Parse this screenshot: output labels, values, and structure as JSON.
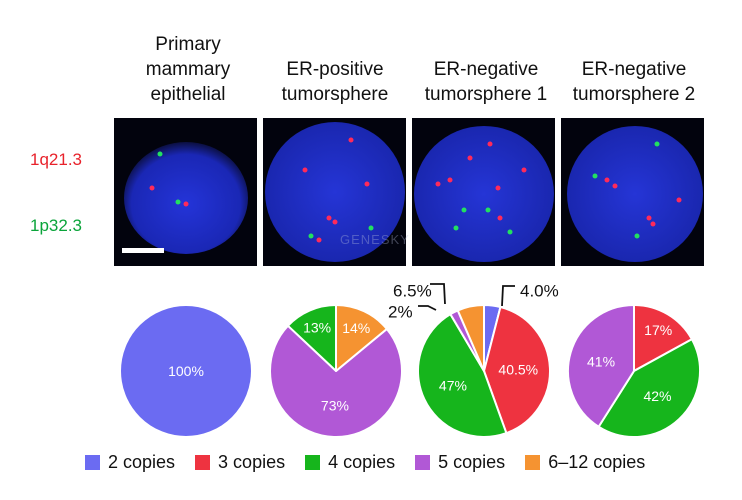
{
  "panel_titles": [
    "Primary\nmammary\nepithelial",
    "ER-positive\ntumorsphere",
    "ER-negative\ntumorsphere 1",
    "ER-negative\ntumorsphere 2"
  ],
  "probe_labels": {
    "red_probe": "1q21.3",
    "green_probe": "1p32.3"
  },
  "colors": {
    "2 copies": "#6b6bf2",
    "3 copies": "#ee3340",
    "4 copies": "#16b51c",
    "5 copies": "#b158d6",
    "6–12 copies": "#f59331",
    "nucleus": "#1c2ec8",
    "red_probe": "#ff2a5a",
    "green_probe": "#22e060"
  },
  "watermark": "GENESKY",
  "chart_data": [
    {
      "type": "pie",
      "title": "Primary mammary epithelial",
      "slices": [
        {
          "name": "2 copies",
          "value": 100,
          "label": "100%"
        }
      ]
    },
    {
      "type": "pie",
      "title": "ER-positive tumorsphere",
      "slices": [
        {
          "name": "4 copies",
          "value": 13,
          "label": "13%"
        },
        {
          "name": "5 copies",
          "value": 73,
          "label": "73%"
        },
        {
          "name": "6–12 copies",
          "value": 14,
          "label": "14%"
        }
      ]
    },
    {
      "type": "pie",
      "title": "ER-negative tumorsphere 1",
      "slices": [
        {
          "name": "2 copies",
          "value": 4.0,
          "label": "4.0%",
          "callout": true
        },
        {
          "name": "3 copies",
          "value": 40.5,
          "label": "40.5%"
        },
        {
          "name": "4 copies",
          "value": 47,
          "label": "47%"
        },
        {
          "name": "5 copies",
          "value": 2,
          "label": "2%",
          "callout": true
        },
        {
          "name": "6–12 copies",
          "value": 6.5,
          "label": "6.5%",
          "callout": true
        }
      ]
    },
    {
      "type": "pie",
      "title": "ER-negative tumorsphere 2",
      "slices": [
        {
          "name": "3 copies",
          "value": 17,
          "label": "17%"
        },
        {
          "name": "4 copies",
          "value": 42,
          "label": "42%"
        },
        {
          "name": "5 copies",
          "value": 41,
          "label": "41%"
        }
      ]
    }
  ],
  "legend": [
    "2 copies",
    "3 copies",
    "4 copies",
    "5 copies",
    "6–12 copies"
  ]
}
